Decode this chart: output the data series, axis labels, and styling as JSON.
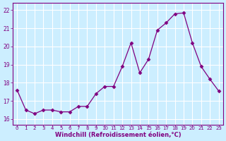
{
  "x": [
    0,
    1,
    2,
    3,
    4,
    5,
    6,
    7,
    8,
    9,
    10,
    11,
    12,
    13,
    14,
    15,
    16,
    17,
    18,
    19,
    20,
    21,
    22,
    23
  ],
  "y": [
    17.6,
    16.5,
    16.3,
    16.5,
    16.5,
    16.4,
    16.4,
    16.7,
    16.7,
    17.4,
    17.8,
    17.8,
    18.9,
    20.2,
    18.55,
    19.3,
    20.9,
    21.3,
    21.8,
    21.85,
    20.2,
    18.9,
    18.2,
    17.55
  ],
  "line_color": "#800080",
  "marker": "D",
  "marker_size": 2.5,
  "bg_color": "#cceeff",
  "grid_color": "#ffffff",
  "xlabel": "Windchill (Refroidissement éolien,°C)",
  "xlabel_color": "#800080",
  "tick_color": "#800080",
  "yticks": [
    16,
    17,
    18,
    19,
    20,
    21,
    22
  ],
  "xticks": [
    0,
    1,
    2,
    3,
    4,
    5,
    6,
    7,
    8,
    9,
    10,
    11,
    12,
    13,
    14,
    15,
    16,
    17,
    18,
    19,
    20,
    21,
    22,
    23
  ],
  "ylim": [
    15.7,
    22.4
  ],
  "xlim": [
    -0.5,
    23.5
  ]
}
